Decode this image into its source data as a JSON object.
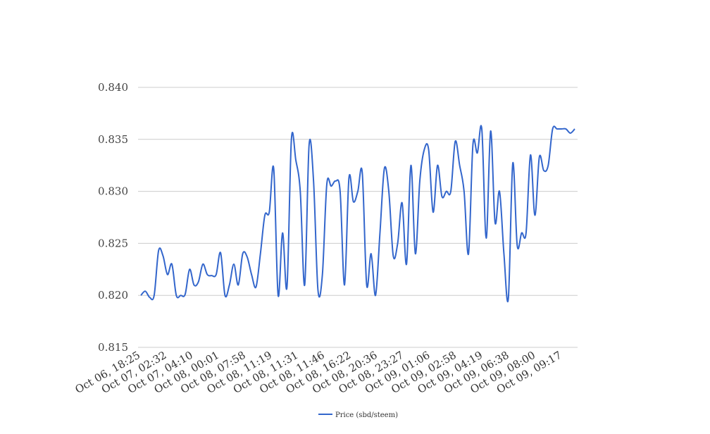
{
  "chart_data": {
    "type": "line",
    "title": "",
    "xlabel": "",
    "ylabel": "",
    "ylim": [
      0.815,
      0.84
    ],
    "y_ticks": [
      "0.815",
      "0.820",
      "0.825",
      "0.830",
      "0.835",
      "0.840"
    ],
    "y_tick_values": [
      0.815,
      0.82,
      0.825,
      0.83,
      0.835,
      0.84
    ],
    "x_tick_labels": [
      "Oct 06, 18:25",
      "Oct 07, 02:32",
      "Oct 07, 04:10",
      "Oct 08, 00:01",
      "Oct 08, 07:58",
      "Oct 08, 11:19",
      "Oct 08, 11:31",
      "Oct 08, 11:46",
      "Oct 08, 16:22",
      "Oct 08, 20:36",
      "Oct 08, 23:27",
      "Oct 09, 01:06",
      "Oct 09, 02:58",
      "Oct 09, 04:19",
      "Oct 09, 06:38",
      "Oct 09, 08:00",
      "Oct 09, 09:17"
    ],
    "grid": true,
    "legend_position": "bottom",
    "series": [
      {
        "name": "Price (sbd/steem)",
        "color": "#3366cc",
        "values": [
          0.82,
          0.8204,
          0.8198,
          0.82,
          0.8243,
          0.8238,
          0.822,
          0.823,
          0.82,
          0.82,
          0.8201,
          0.8225,
          0.821,
          0.8213,
          0.823,
          0.822,
          0.8219,
          0.822,
          0.8241,
          0.82,
          0.821,
          0.823,
          0.821,
          0.824,
          0.8237,
          0.822,
          0.8208,
          0.824,
          0.8277,
          0.828,
          0.8322,
          0.82,
          0.826,
          0.8208,
          0.835,
          0.833,
          0.83,
          0.821,
          0.8345,
          0.831,
          0.8205,
          0.822,
          0.8307,
          0.8305,
          0.831,
          0.83,
          0.821,
          0.8313,
          0.829,
          0.83,
          0.8318,
          0.821,
          0.824,
          0.82,
          0.826,
          0.8322,
          0.83,
          0.8238,
          0.825,
          0.8289,
          0.823,
          0.8325,
          0.824,
          0.831,
          0.834,
          0.834,
          0.828,
          0.8325,
          0.8295,
          0.83,
          0.83,
          0.8348,
          0.8325,
          0.83,
          0.824,
          0.8345,
          0.8337,
          0.836,
          0.8255,
          0.8358,
          0.827,
          0.83,
          0.824,
          0.8197,
          0.8327,
          0.8248,
          0.826,
          0.826,
          0.8335,
          0.8277,
          0.8333,
          0.832,
          0.8325,
          0.836,
          0.836,
          0.836,
          0.836,
          0.8356,
          0.836
        ]
      }
    ]
  }
}
